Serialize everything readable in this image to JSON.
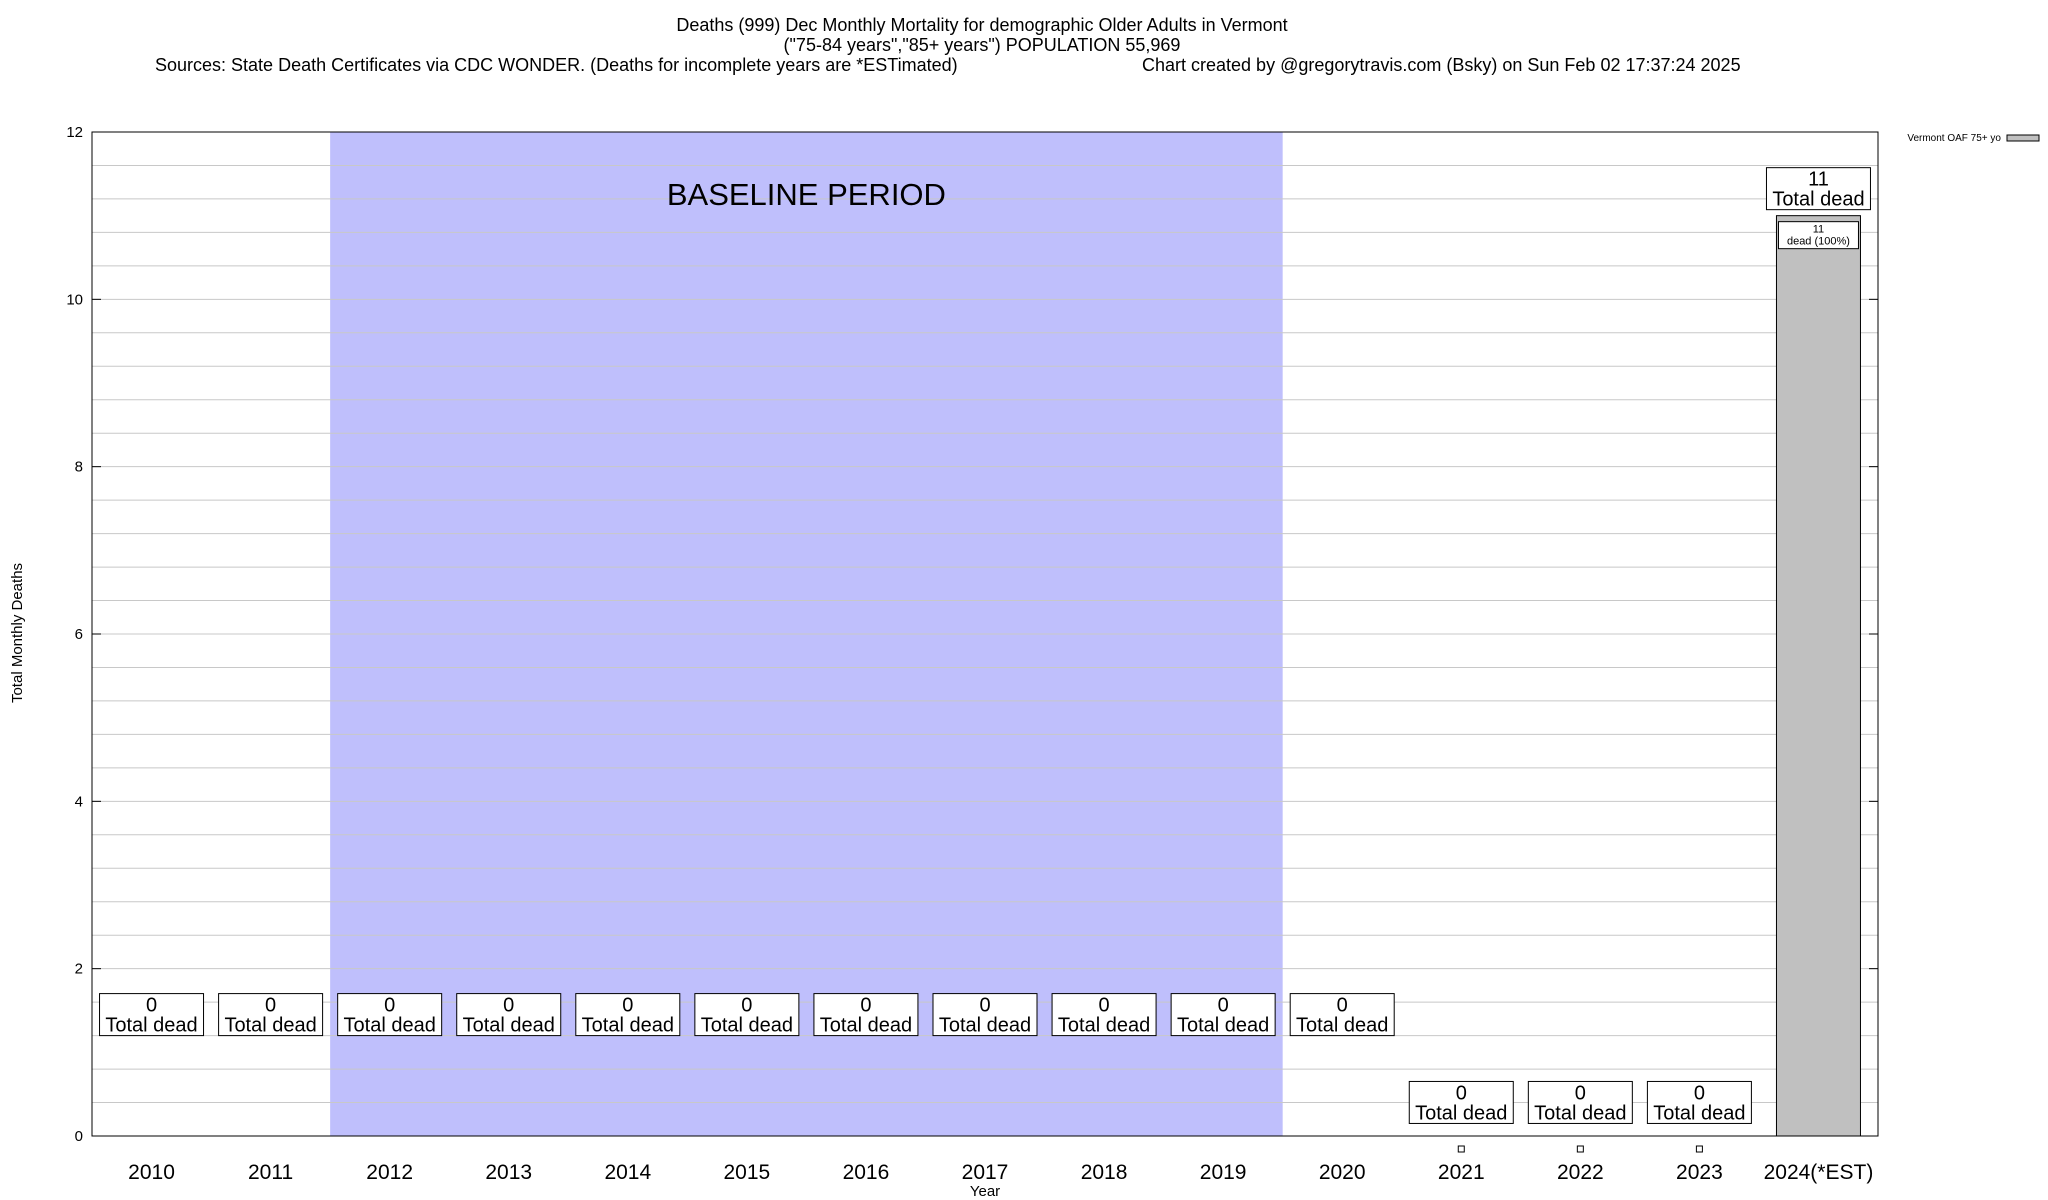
{
  "chart_data": {
    "type": "bar",
    "title_lines": [
      "Deaths (999) Dec Monthly Mortality for demographic Older Adults in Vermont",
      "(\"75-84 years\",\"85+ years\") POPULATION 55,969"
    ],
    "sources": "Sources: State Death Certificates via CDC WONDER. (Deaths for incomplete years are *ESTimated)",
    "credit": "Chart created by @gregorytravis.com (Bsky) on Sun Feb 02 17:37:24 2025",
    "xlabel": "Year",
    "ylabel": "Total Monthly Deaths",
    "ylim": [
      0,
      12
    ],
    "y_ticks": [
      0,
      2,
      4,
      6,
      8,
      10,
      12
    ],
    "y_minor_step": 0.4,
    "grid": true,
    "categories": [
      "2010",
      "2011",
      "2012",
      "2013",
      "2014",
      "2015",
      "2016",
      "2017",
      "2018",
      "2019",
      "2020",
      "2021",
      "2022",
      "2023",
      "2024(*EST)"
    ],
    "series": [
      {
        "name": "Vermont OAF 75+ yo",
        "color": "#c0c0c0",
        "values": [
          0,
          0,
          0,
          0,
          0,
          0,
          0,
          0,
          0,
          0,
          0,
          0,
          0,
          0,
          11
        ]
      }
    ],
    "total_labels": [
      {
        "value": "0",
        "text": "Total dead"
      },
      {
        "value": "0",
        "text": "Total dead"
      },
      {
        "value": "0",
        "text": "Total dead"
      },
      {
        "value": "0",
        "text": "Total dead"
      },
      {
        "value": "0",
        "text": "Total dead"
      },
      {
        "value": "0",
        "text": "Total dead"
      },
      {
        "value": "0",
        "text": "Total dead"
      },
      {
        "value": "0",
        "text": "Total dead"
      },
      {
        "value": "0",
        "text": "Total dead"
      },
      {
        "value": "0",
        "text": "Total dead"
      },
      {
        "value": "0",
        "text": "Total dead"
      },
      {
        "value": "0",
        "text": "Total dead"
      },
      {
        "value": "0",
        "text": "Total dead"
      },
      {
        "value": "0",
        "text": "Total dead"
      },
      {
        "value": "11",
        "text": "Total dead"
      }
    ],
    "segment_label": {
      "value": "11",
      "text": "dead (100%)"
    },
    "baseline": {
      "label": "BASELINE PERIOD",
      "start": "2012",
      "end": "2019",
      "color": "#bfbffc"
    },
    "legend": {
      "position": "top-right",
      "label": "Vermont OAF 75+ yo"
    }
  }
}
